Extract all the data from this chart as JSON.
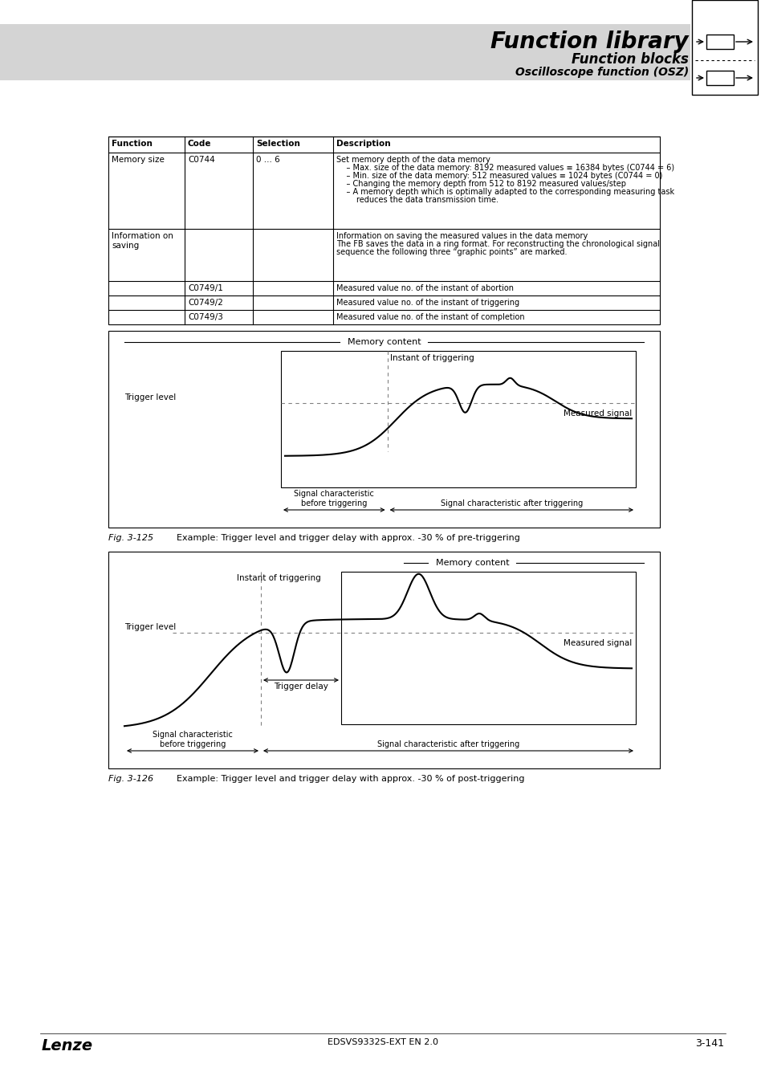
{
  "page_bg": "#ffffff",
  "header_bg": "#d4d4d4",
  "title_text": "Function library",
  "subtitle1": "Function blocks",
  "subtitle2": "Oscilloscope function (OSZ)",
  "table_header": [
    "Function",
    "Code",
    "Selection",
    "Description"
  ],
  "table_rows": [
    {
      "function": "Memory size",
      "code": "C0744",
      "selection": "0 ... 6",
      "description": "Set memory depth of the data memory\n    – Max. size of the data memory: 8192 measured values ≡ 16384 bytes (C0744 = 6)\n    – Min. size of the data memory: 512 measured values ≡ 1024 bytes (C0744 = 0)\n    – Changing the memory depth from 512 to 8192 measured values/step\n    – A memory depth which is optimally adapted to the corresponding measuring task\n        reduces the data transmission time."
    },
    {
      "function": "Information on\nsaving",
      "code": "",
      "selection": "",
      "description": "Information on saving the measured values in the data memory\nThe FB saves the data in a ring format. For reconstructing the chronological signal\nsequence the following three “graphic points” are marked."
    },
    {
      "function": "",
      "code": "C0749/1",
      "selection": "",
      "description": "Measured value no. of the instant of abortion"
    },
    {
      "function": "",
      "code": "C0749/2",
      "selection": "",
      "description": "Measured value no. of the instant of triggering"
    },
    {
      "function": "",
      "code": "C0749/3",
      "selection": "",
      "description": "Measured value no. of the instant of completion"
    }
  ],
  "fig125_caption": "Fig. 3-125",
  "fig125_text": "Example: Trigger level and trigger delay with approx. -30 % of pre-triggering",
  "fig126_caption": "Fig. 3-126",
  "fig126_text": "Example: Trigger level and trigger delay with approx. -30 % of post-triggering",
  "footer_left": "Lenze",
  "footer_center": "EDSVS9332S-EXT EN 2.0",
  "footer_right": "3-141"
}
